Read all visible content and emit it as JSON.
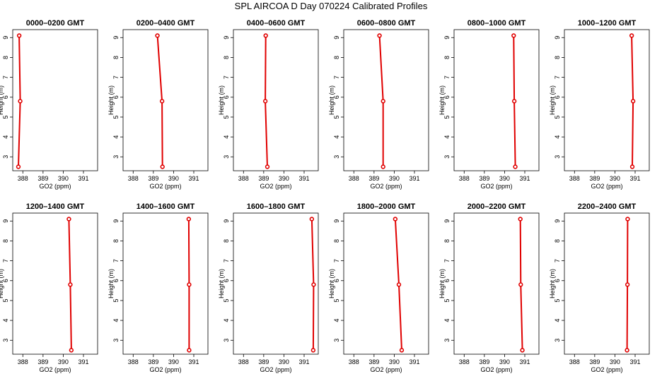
{
  "figure": {
    "title": "SPL AIRCOA D  Day 070224  Calibrated Profiles"
  },
  "style": {
    "series_color": "#e00000"
  },
  "chart_data": [
    {
      "type": "line",
      "title": "0000–0200 GMT",
      "xlabel": "GO2 (ppm)",
      "ylabel": "Height (m)",
      "xlim": [
        387.5,
        391.7
      ],
      "ylim": [
        2.3,
        9.4
      ],
      "xticks": [
        388,
        389,
        390,
        391
      ],
      "yticks": [
        3,
        4,
        5,
        6,
        7,
        8,
        9
      ],
      "grid": false,
      "series": [
        {
          "x": [
            387.78,
            387.87,
            387.82
          ],
          "y": [
            2.5,
            5.8,
            9.1
          ]
        }
      ]
    },
    {
      "type": "line",
      "title": "0200–0400 GMT",
      "xlabel": "GO2 (ppm)",
      "ylabel": "Height (m)",
      "xlim": [
        387.5,
        391.7
      ],
      "ylim": [
        2.3,
        9.4
      ],
      "xticks": [
        388,
        389,
        390,
        391
      ],
      "yticks": [
        3,
        4,
        5,
        6,
        7,
        8,
        9
      ],
      "grid": false,
      "series": [
        {
          "x": [
            389.45,
            389.43,
            389.2
          ],
          "y": [
            2.5,
            5.8,
            9.1
          ]
        }
      ]
    },
    {
      "type": "line",
      "title": "0400–0600 GMT",
      "xlabel": "GO2 (ppm)",
      "ylabel": "Height (m)",
      "xlim": [
        387.5,
        391.7
      ],
      "ylim": [
        2.3,
        9.4
      ],
      "xticks": [
        388,
        389,
        390,
        391
      ],
      "yticks": [
        3,
        4,
        5,
        6,
        7,
        8,
        9
      ],
      "grid": false,
      "series": [
        {
          "x": [
            389.18,
            389.08,
            389.1
          ],
          "y": [
            2.5,
            5.8,
            9.1
          ]
        }
      ]
    },
    {
      "type": "line",
      "title": "0600–0800 GMT",
      "xlabel": "GO2 (ppm)",
      "ylabel": "Height (m)",
      "xlim": [
        387.5,
        391.7
      ],
      "ylim": [
        2.3,
        9.4
      ],
      "xticks": [
        388,
        389,
        390,
        391
      ],
      "yticks": [
        3,
        4,
        5,
        6,
        7,
        8,
        9
      ],
      "grid": false,
      "series": [
        {
          "x": [
            389.45,
            389.45,
            389.27
          ],
          "y": [
            2.5,
            5.8,
            9.1
          ]
        }
      ]
    },
    {
      "type": "line",
      "title": "0800–1000 GMT",
      "xlabel": "GO2 (ppm)",
      "ylabel": "Height (m)",
      "xlim": [
        387.5,
        391.7
      ],
      "ylim": [
        2.3,
        9.4
      ],
      "xticks": [
        388,
        389,
        390,
        391
      ],
      "yticks": [
        3,
        4,
        5,
        6,
        7,
        8,
        9
      ],
      "grid": false,
      "series": [
        {
          "x": [
            390.53,
            390.48,
            390.45
          ],
          "y": [
            2.5,
            5.8,
            9.1
          ]
        }
      ]
    },
    {
      "type": "line",
      "title": "1000–1200 GMT",
      "xlabel": "GO2 (ppm)",
      "ylabel": "Height (m)",
      "xlim": [
        387.5,
        391.7
      ],
      "ylim": [
        2.3,
        9.4
      ],
      "xticks": [
        388,
        389,
        390,
        391
      ],
      "yticks": [
        3,
        4,
        5,
        6,
        7,
        8,
        9
      ],
      "grid": false,
      "series": [
        {
          "x": [
            390.86,
            390.9,
            390.83
          ],
          "y": [
            2.5,
            5.8,
            9.1
          ]
        }
      ]
    },
    {
      "type": "line",
      "title": "1200–1400 GMT",
      "xlabel": "GO2 (ppm)",
      "ylabel": "Height (m)",
      "xlim": [
        387.5,
        391.7
      ],
      "ylim": [
        2.3,
        9.4
      ],
      "xticks": [
        388,
        389,
        390,
        391
      ],
      "yticks": [
        3,
        4,
        5,
        6,
        7,
        8,
        9
      ],
      "grid": false,
      "series": [
        {
          "x": [
            390.4,
            390.35,
            390.28
          ],
          "y": [
            2.5,
            5.8,
            9.1
          ]
        }
      ]
    },
    {
      "type": "line",
      "title": "1400–1600 GMT",
      "xlabel": "GO2 (ppm)",
      "ylabel": "Height (m)",
      "xlim": [
        387.5,
        391.7
      ],
      "ylim": [
        2.3,
        9.4
      ],
      "xticks": [
        388,
        389,
        390,
        391
      ],
      "yticks": [
        3,
        4,
        5,
        6,
        7,
        8,
        9
      ],
      "grid": false,
      "series": [
        {
          "x": [
            390.77,
            390.77,
            390.75
          ],
          "y": [
            2.5,
            5.8,
            9.1
          ]
        }
      ]
    },
    {
      "type": "line",
      "title": "1600–1800 GMT",
      "xlabel": "GO2 (ppm)",
      "ylabel": "Height (m)",
      "xlim": [
        387.5,
        391.7
      ],
      "ylim": [
        2.3,
        9.4
      ],
      "xticks": [
        388,
        389,
        390,
        391
      ],
      "yticks": [
        3,
        4,
        5,
        6,
        7,
        8,
        9
      ],
      "grid": false,
      "series": [
        {
          "x": [
            391.45,
            391.47,
            391.38
          ],
          "y": [
            2.5,
            5.8,
            9.1
          ]
        }
      ]
    },
    {
      "type": "line",
      "title": "1800–2000 GMT",
      "xlabel": "GO2 (ppm)",
      "ylabel": "Height (m)",
      "xlim": [
        387.5,
        391.7
      ],
      "ylim": [
        2.3,
        9.4
      ],
      "xticks": [
        388,
        389,
        390,
        391
      ],
      "yticks": [
        3,
        4,
        5,
        6,
        7,
        8,
        9
      ],
      "grid": false,
      "series": [
        {
          "x": [
            390.37,
            390.23,
            390.05
          ],
          "y": [
            2.5,
            5.8,
            9.1
          ]
        }
      ]
    },
    {
      "type": "line",
      "title": "2000–2200 GMT",
      "xlabel": "GO2 (ppm)",
      "ylabel": "Height (m)",
      "xlim": [
        387.5,
        391.7
      ],
      "ylim": [
        2.3,
        9.4
      ],
      "xticks": [
        388,
        389,
        390,
        391
      ],
      "yticks": [
        3,
        4,
        5,
        6,
        7,
        8,
        9
      ],
      "grid": false,
      "series": [
        {
          "x": [
            390.88,
            390.8,
            390.78
          ],
          "y": [
            2.5,
            5.8,
            9.1
          ]
        }
      ]
    },
    {
      "type": "line",
      "title": "2200–2400 GMT",
      "xlabel": "GO2 (ppm)",
      "ylabel": "Height (m)",
      "xlim": [
        387.5,
        391.7
      ],
      "ylim": [
        2.3,
        9.4
      ],
      "xticks": [
        388,
        389,
        390,
        391
      ],
      "yticks": [
        3,
        4,
        5,
        6,
        7,
        8,
        9
      ],
      "grid": false,
      "series": [
        {
          "x": [
            390.6,
            390.62,
            390.63
          ],
          "y": [
            2.5,
            5.8,
            9.1
          ]
        }
      ]
    }
  ]
}
